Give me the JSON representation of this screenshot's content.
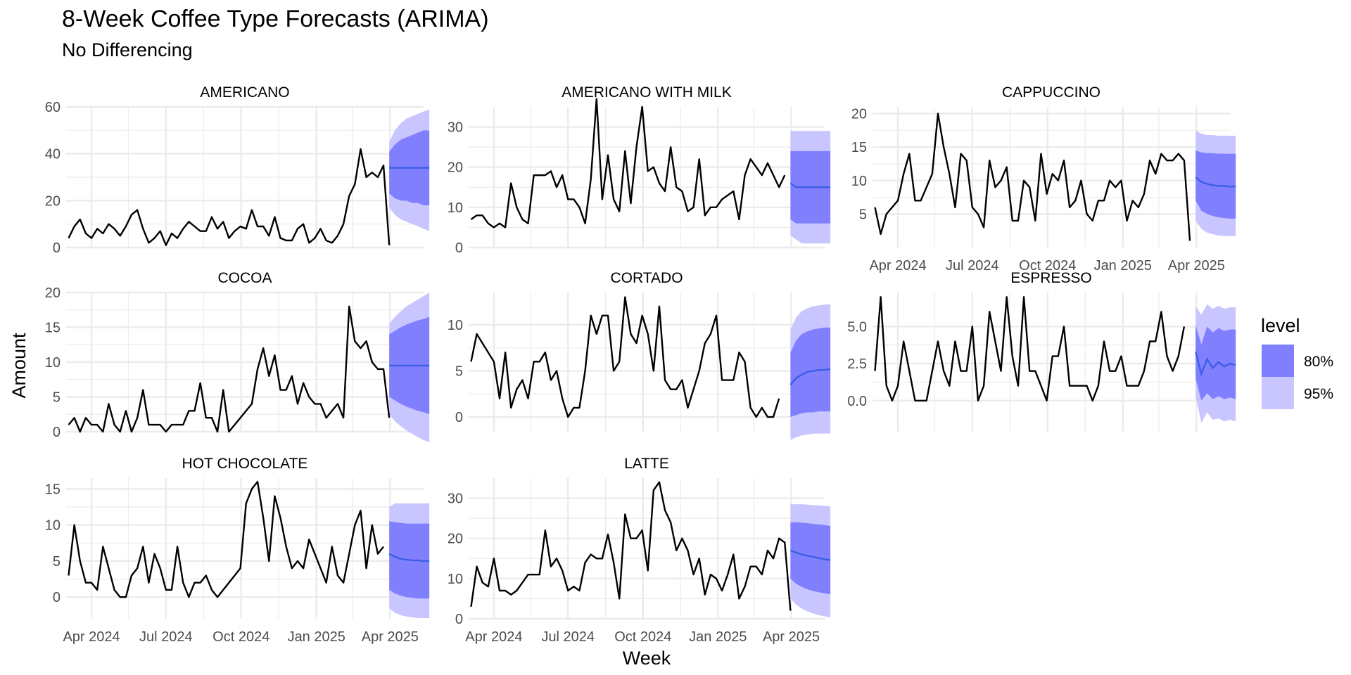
{
  "title": "8-Week Coffee Type Forecasts (ARIMA)",
  "subtitle": "No Differencing",
  "chart_data": {
    "type": "line",
    "xlabel": "Week",
    "ylabel": "Amount",
    "x_tick_labels": [
      "Apr 2024",
      "Jul 2024",
      "Oct 2024",
      "Jan 2025",
      "Apr 2025"
    ],
    "x_range": [
      "2024-03-01",
      "2025-05-12"
    ],
    "history_start": "2024-03-04",
    "forecast_start": "2025-03-31",
    "forecast_steps": 8,
    "legend": {
      "title": "level",
      "position": "right",
      "items": [
        {
          "label": "80%",
          "color": "#8080ff"
        },
        {
          "label": "95%",
          "color": "#c9c6ff"
        }
      ]
    },
    "colors": {
      "history": "#000000",
      "forecast_mean": "#3c5ee6",
      "band80": "#8080ff",
      "band95": "#c9c6ff",
      "grid": "#ebebeb"
    },
    "panels": [
      {
        "name": "AMERICANO",
        "ylim": [
          0,
          60
        ],
        "yticks": [
          0,
          20,
          40,
          60
        ],
        "ytick_labels": [
          "0",
          "20",
          "40",
          "60"
        ],
        "history": [
          4,
          9,
          12,
          6,
          4,
          8,
          6,
          10,
          8,
          5,
          9,
          14,
          16,
          8,
          2,
          4,
          7,
          1,
          6,
          4,
          8,
          11,
          9,
          7,
          7,
          13,
          8,
          11,
          4,
          7,
          9,
          8,
          16,
          9,
          9,
          5,
          13,
          4,
          3,
          3,
          8,
          10,
          2,
          4,
          8,
          3,
          2,
          5,
          10,
          22,
          27,
          42,
          30,
          32,
          30,
          35,
          1
        ],
        "forecast": {
          "mean": [
            34,
            34,
            34,
            34,
            34,
            34,
            34,
            34
          ],
          "lo80": [
            23,
            21,
            20,
            20,
            19,
            19,
            18,
            18
          ],
          "hi80": [
            41,
            44,
            46,
            47,
            48,
            49,
            50,
            50
          ],
          "lo95": [
            17,
            14,
            12,
            11,
            10,
            9,
            8,
            7
          ],
          "hi95": [
            45,
            50,
            53,
            55,
            56,
            57,
            58,
            59
          ]
        }
      },
      {
        "name": "AMERICANO WITH MILK",
        "ylim": [
          0,
          35
        ],
        "yticks": [
          0,
          10,
          20,
          30
        ],
        "ytick_labels": [
          "0",
          "10",
          "20",
          "30"
        ],
        "history": [
          7,
          8,
          8,
          6,
          5,
          6,
          5,
          16,
          10,
          7,
          6,
          18,
          18,
          18,
          19,
          15,
          18,
          12,
          12,
          10,
          6,
          17,
          37,
          12,
          23,
          12,
          9,
          24,
          11,
          25,
          35,
          19,
          20,
          16,
          14,
          25,
          15,
          14,
          9,
          10,
          22,
          8,
          10,
          10,
          12,
          13,
          14,
          7,
          18,
          22,
          20,
          18,
          21,
          18,
          15,
          18
        ],
        "forecast": {
          "mean": [
            16,
            15,
            15,
            15,
            15,
            15,
            15,
            15
          ],
          "lo80": [
            7,
            6,
            6,
            6,
            6,
            6,
            6,
            6
          ],
          "hi80": [
            24,
            24,
            24,
            24,
            24,
            24,
            24,
            24
          ],
          "lo95": [
            3,
            2,
            1,
            1,
            1,
            1,
            1,
            1
          ],
          "hi95": [
            29,
            29,
            29,
            29,
            29,
            29,
            29,
            29
          ]
        }
      },
      {
        "name": "CAPPUCCINO",
        "ylim": [
          0,
          21
        ],
        "yticks": [
          5,
          10,
          15,
          20
        ],
        "ytick_labels": [
          "5",
          "10",
          "15",
          "20"
        ],
        "history": [
          6,
          2,
          5,
          6,
          7,
          11,
          14,
          7,
          7,
          9,
          11,
          20,
          15,
          11,
          6,
          14,
          13,
          6,
          5,
          3,
          13,
          9,
          10,
          12,
          4,
          4,
          10,
          9,
          4,
          14,
          8,
          11,
          10,
          13,
          6,
          7,
          10,
          5,
          4,
          7,
          7,
          10,
          9,
          10,
          4,
          7,
          6,
          8,
          13,
          11,
          14,
          13,
          13,
          14,
          13,
          1
        ],
        "forecast": {
          "mean": [
            10.5,
            9.8,
            9.5,
            9.3,
            9.2,
            9.2,
            9.1,
            9.1
          ],
          "lo80": [
            7,
            5.5,
            5,
            4.7,
            4.5,
            4.4,
            4.3,
            4.3
          ],
          "hi80": [
            14.5,
            14.2,
            14.1,
            14.1,
            14,
            14,
            14,
            14
          ],
          "lo95": [
            4,
            2.8,
            2.2,
            2,
            1.8,
            1.7,
            1.7,
            1.7
          ],
          "hi95": [
            17.5,
            17,
            16.8,
            16.8,
            16.7,
            16.7,
            16.7,
            16.7
          ]
        }
      },
      {
        "name": "COCOA",
        "ylim": [
          0,
          20
        ],
        "yticks": [
          0,
          5,
          10,
          15,
          20
        ],
        "ytick_labels": [
          "0",
          "5",
          "10",
          "15",
          "20"
        ],
        "history": [
          1,
          2,
          0,
          2,
          1,
          1,
          0,
          4,
          1,
          0,
          3,
          0,
          2,
          6,
          1,
          1,
          1,
          0,
          1,
          1,
          1,
          3,
          3,
          7,
          2,
          2,
          0,
          6,
          0,
          1,
          2,
          3,
          4,
          9,
          12,
          8,
          11,
          6,
          6,
          8,
          4,
          7,
          5,
          4,
          4,
          2,
          3,
          4,
          2,
          18,
          13,
          12,
          13,
          10,
          9,
          9,
          2
        ],
        "forecast": {
          "mean": [
            9.5,
            9.5,
            9.5,
            9.5,
            9.5,
            9.5,
            9.5,
            9.5
          ],
          "lo80": [
            5,
            4.5,
            4,
            3.6,
            3.3,
            3,
            2.8,
            2.5
          ],
          "hi80": [
            14,
            14.5,
            15,
            15.4,
            15.7,
            16,
            16.2,
            16.5
          ],
          "lo95": [
            2.5,
            1.5,
            0.8,
            0.2,
            -0.3,
            -0.8,
            -1.2,
            -1.5
          ],
          "hi95": [
            15.5,
            16.5,
            17.3,
            18,
            18.5,
            19,
            19.5,
            20
          ]
        }
      },
      {
        "name": "CORTADO",
        "ylim": [
          -1.6,
          13.5
        ],
        "yticks": [
          0,
          5,
          10
        ],
        "ytick_labels": [
          "0",
          "5",
          "10"
        ],
        "history": [
          6,
          9,
          8,
          7,
          6,
          2,
          7,
          1,
          3,
          4,
          2,
          6,
          6,
          7,
          4,
          5,
          2,
          0,
          1,
          1,
          5,
          11,
          9,
          11,
          11,
          5,
          6,
          13,
          9,
          8,
          11,
          9,
          5,
          12,
          4,
          3,
          3,
          4,
          1,
          3,
          5,
          8,
          9,
          11,
          4,
          4,
          4,
          7,
          6,
          1,
          0,
          1,
          0,
          0,
          2
        ],
        "forecast": {
          "mean": [
            3.5,
            4.2,
            4.6,
            4.9,
            5,
            5.1,
            5.1,
            5.2
          ],
          "lo80": [
            0,
            0.2,
            0.4,
            0.5,
            0.5,
            0.6,
            0.6,
            0.6
          ],
          "hi80": [
            7,
            8.3,
            9,
            9.3,
            9.5,
            9.6,
            9.7,
            9.7
          ],
          "lo95": [
            -2.5,
            -2.2,
            -2,
            -1.9,
            -1.8,
            -1.8,
            -1.8,
            -1.8
          ],
          "hi95": [
            9.5,
            10.8,
            11.5,
            11.8,
            12,
            12.1,
            12.2,
            12.2
          ]
        }
      },
      {
        "name": "ESPRESSO",
        "ylim": [
          -2.1,
          7.3
        ],
        "yticks": [
          0,
          2.5,
          5
        ],
        "ytick_labels": [
          "0.0",
          "2.5",
          "5.0"
        ],
        "history": [
          2,
          7,
          1,
          0,
          1,
          4,
          2,
          0,
          0,
          0,
          2,
          4,
          2,
          1,
          4,
          2,
          2,
          5,
          0,
          1,
          6,
          4,
          2,
          7,
          3,
          1,
          7,
          2,
          2,
          1,
          0,
          3,
          3,
          5,
          1,
          1,
          1,
          1,
          0,
          1,
          4,
          2,
          2,
          3,
          1,
          1,
          1,
          2,
          4,
          4,
          6,
          3,
          2,
          3,
          5
        ],
        "forecast": {
          "mean": [
            3.3,
            1.8,
            2.8,
            2.2,
            2.6,
            2.3,
            2.5,
            2.4
          ],
          "lo80": [
            1.5,
            0,
            0.5,
            0.1,
            0.3,
            0.1,
            0.2,
            0.1
          ],
          "hi80": [
            5.1,
            3.8,
            5,
            4.6,
            4.9,
            4.7,
            4.8,
            4.8
          ],
          "lo95": [
            0.3,
            -1.5,
            -0.8,
            -1.3,
            -1.2,
            -1.4,
            -1.3,
            -1.4
          ],
          "hi95": [
            6.4,
            5.8,
            6.5,
            6.2,
            6.4,
            6.2,
            6.3,
            6.3
          ]
        }
      },
      {
        "name": "HOT CHOCOLATE",
        "ylim": [
          -3,
          16.5
        ],
        "yticks": [
          0,
          5,
          10,
          15
        ],
        "ytick_labels": [
          "0",
          "5",
          "10",
          "15"
        ],
        "history": [
          3,
          10,
          5,
          2,
          2,
          1,
          7,
          4,
          1,
          0,
          0,
          3,
          4,
          7,
          2,
          6,
          4,
          1,
          1,
          7,
          2,
          0,
          2,
          2,
          3,
          1,
          0,
          1,
          2,
          3,
          4,
          13,
          15,
          16,
          11,
          5,
          14,
          11,
          7,
          4,
          5,
          4,
          8,
          6,
          4,
          2,
          7,
          3,
          2,
          6,
          10,
          12,
          4,
          10,
          6,
          7
        ],
        "forecast": {
          "mean": [
            6,
            5.6,
            5.3,
            5.2,
            5.1,
            5.1,
            5,
            5
          ],
          "lo80": [
            1,
            0.5,
            0.2,
            0,
            -0.1,
            -0.2,
            -0.2,
            -0.2
          ],
          "hi80": [
            10.5,
            10.4,
            10.3,
            10.2,
            10.2,
            10.2,
            10.2,
            10.2
          ],
          "lo95": [
            -1.5,
            -2.2,
            -2.5,
            -2.7,
            -2.8,
            -2.9,
            -2.9,
            -2.9
          ],
          "hi95": [
            12.5,
            13,
            13,
            13,
            13,
            13,
            13,
            13
          ]
        }
      },
      {
        "name": "LATTE",
        "ylim": [
          0,
          35
        ],
        "yticks": [
          0,
          10,
          20,
          30
        ],
        "ytick_labels": [
          "0",
          "10",
          "20",
          "30"
        ],
        "history": [
          3,
          13,
          9,
          8,
          15,
          7,
          7,
          6,
          7,
          9,
          11,
          11,
          11,
          22,
          13,
          15,
          12,
          7,
          8,
          7,
          14,
          16,
          15,
          15,
          21,
          14,
          5,
          26,
          20,
          20,
          22,
          12,
          32,
          34,
          27,
          24,
          17,
          20,
          17,
          11,
          15,
          6,
          11,
          10,
          7,
          11,
          16,
          5,
          8,
          13,
          13,
          11,
          17,
          15,
          20,
          19,
          2
        ],
        "forecast": {
          "mean": [
            17,
            16.5,
            16,
            15.7,
            15.4,
            15.1,
            14.8,
            14.6
          ],
          "lo80": [
            10,
            8.7,
            7.9,
            7.3,
            6.9,
            6.6,
            6.3,
            6.1
          ],
          "hi80": [
            24,
            24,
            23.9,
            23.8,
            23.6,
            23.5,
            23.3,
            23.1
          ],
          "lo95": [
            5,
            3.5,
            2.5,
            1.8,
            1.3,
            0.9,
            0.6,
            0.3
          ],
          "hi95": [
            28.5,
            28.5,
            28.5,
            28.4,
            28.3,
            28.2,
            28.1,
            28
          ]
        }
      }
    ]
  }
}
